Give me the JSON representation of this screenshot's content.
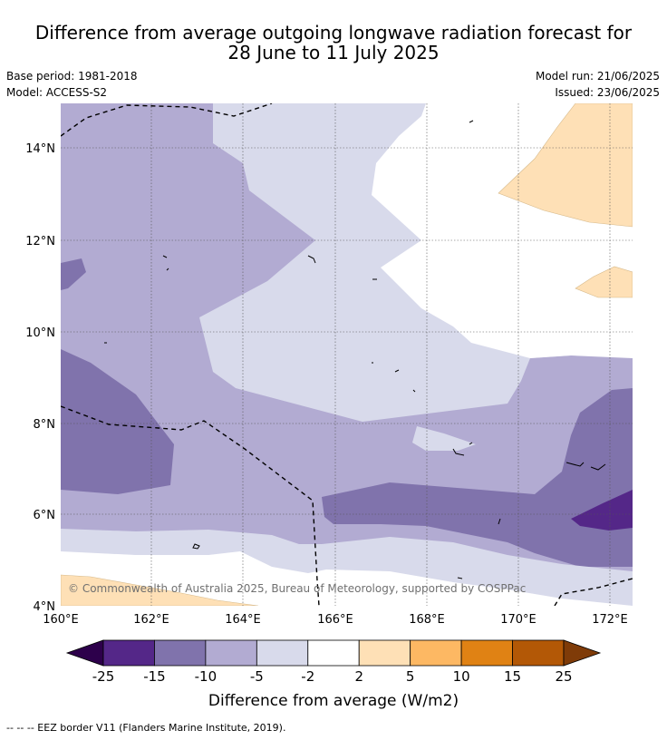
{
  "title": {
    "line1": "Difference from average outgoing longwave radiation forecast for",
    "line2": "28 June to 11 July 2025"
  },
  "meta": {
    "base_period": "Base period: 1981-2018",
    "model": "Model: ACCESS-S2",
    "model_run": "Model run: 21/06/2025",
    "issued": "Issued: 23/06/2025"
  },
  "map": {
    "lon_labels": [
      "160°E",
      "162°E",
      "164°E",
      "166°E",
      "168°E",
      "170°E",
      "172°E"
    ],
    "lat_labels": [
      "14°N",
      "12°N",
      "10°N",
      "8°N",
      "6°N",
      "4°N"
    ],
    "copyright": "© Commonwealth of Australia 2025, Bureau of Meteorology, supported by COSPPac"
  },
  "colorbar": {
    "ticks": [
      "-25",
      "-15",
      "-10",
      "-5",
      "-2",
      "2",
      "5",
      "10",
      "15",
      "25"
    ],
    "label": "Difference from average (W/m2)",
    "colors": [
      "#2d004b",
      "#542788",
      "#8073ac",
      "#b2abd2",
      "#d8daeb",
      "#ffffff",
      "#fee0b6",
      "#fdb863",
      "#e08214",
      "#b35806",
      "#7f3b08"
    ]
  },
  "legend": {
    "eez": "--  --  -- EEZ border V11 (Flanders Marine Institute, 2019)."
  }
}
